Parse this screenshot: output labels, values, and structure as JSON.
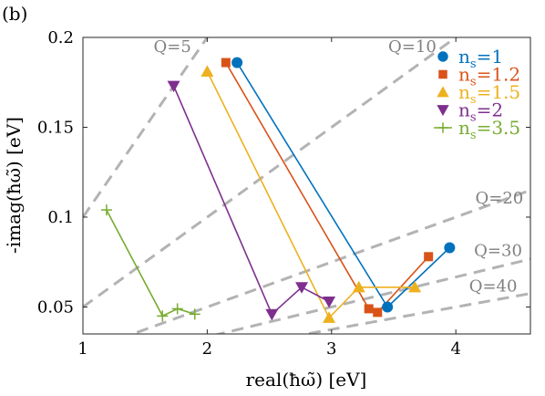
{
  "panel_label": "(b)",
  "chart_data": {
    "type": "line",
    "xlabel": "real(ħω̃) [eV]",
    "ylabel": "-imag(ħω̃) [eV]",
    "xlim": [
      1,
      4.6
    ],
    "ylim": [
      0.035,
      0.2
    ],
    "xticks": [
      1,
      2,
      3,
      4
    ],
    "yticks": [
      0.05,
      0.1,
      0.15,
      0.2
    ],
    "xtick_labels": [
      "1",
      "2",
      "3",
      "4"
    ],
    "ytick_labels": [
      "0.05",
      "0.1",
      "0.15",
      "0.2"
    ],
    "grid": false,
    "legend_position": "top-right",
    "q_lines": [
      {
        "q": 5,
        "label": "Q=5"
      },
      {
        "q": 10,
        "label": "Q=10"
      },
      {
        "q": 20,
        "label": "Q=20"
      },
      {
        "q": 30,
        "label": "Q=30"
      },
      {
        "q": 40,
        "label": "Q=40"
      }
    ],
    "series": [
      {
        "name": "ns=1",
        "name_base": "n",
        "name_sub": "s",
        "name_rest": "=1",
        "color": "#0072BD",
        "marker": "circle",
        "x": [
          2.24,
          3.45,
          3.95
        ],
        "y": [
          0.186,
          0.05,
          0.083
        ]
      },
      {
        "name": "ns=1.2",
        "name_base": "n",
        "name_sub": "s",
        "name_rest": "=1.2",
        "color": "#D95319",
        "marker": "square",
        "x": [
          2.15,
          3.3,
          3.37,
          3.78
        ],
        "y": [
          0.186,
          0.049,
          0.047,
          0.078
        ]
      },
      {
        "name": "ns=1.5",
        "name_base": "n",
        "name_sub": "s",
        "name_rest": "=1.5",
        "color": "#EDB120",
        "marker": "triangle-up",
        "x": [
          2.0,
          2.98,
          3.22,
          3.67
        ],
        "y": [
          0.181,
          0.044,
          0.061,
          0.061
        ]
      },
      {
        "name": "ns=2",
        "name_base": "n",
        "name_sub": "s",
        "name_rest": "=2",
        "color": "#7E2F8E",
        "marker": "triangle-down",
        "x": [
          1.73,
          2.52,
          2.76,
          2.98
        ],
        "y": [
          0.173,
          0.046,
          0.061,
          0.053
        ]
      },
      {
        "name": "ns=3.5",
        "name_base": "n",
        "name_sub": "s",
        "name_rest": "=3.5",
        "color": "#77AC30",
        "marker": "plus-line",
        "x": [
          1.19,
          1.64,
          1.76,
          1.9
        ],
        "y": [
          0.104,
          0.045,
          0.049,
          0.046
        ]
      }
    ]
  }
}
